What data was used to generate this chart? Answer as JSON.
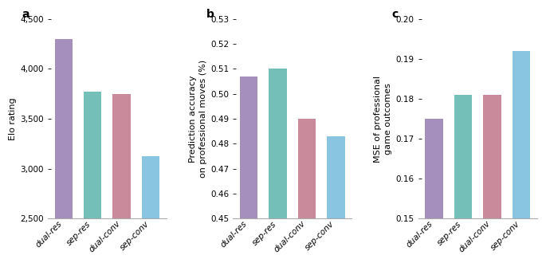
{
  "categories": [
    "dual-res",
    "sep-res",
    "dual-conv",
    "sep-conv"
  ],
  "bar_colors": [
    "#a58fbc",
    "#74bfb8",
    "#c98a9b",
    "#89c4e0"
  ],
  "chart_a": {
    "label": "a",
    "values": [
      4300,
      3775,
      3750,
      3125
    ],
    "ylabel": "Elo rating",
    "ylim": [
      2500,
      4500
    ],
    "yticks": [
      2500,
      3000,
      3500,
      4000,
      4500
    ]
  },
  "chart_b": {
    "label": "b",
    "values": [
      0.507,
      0.51,
      0.49,
      0.483
    ],
    "ylabel": "Prediction accuracy\non professional moves (%)",
    "ylim": [
      0.45,
      0.53
    ],
    "yticks": [
      0.45,
      0.46,
      0.47,
      0.48,
      0.49,
      0.5,
      0.51,
      0.52,
      0.53
    ]
  },
  "chart_c": {
    "label": "c",
    "values": [
      0.175,
      0.181,
      0.181,
      0.192
    ],
    "ylabel": "MSE of professional\ngame outcomes",
    "ylim": [
      0.15,
      0.2
    ],
    "yticks": [
      0.15,
      0.16,
      0.17,
      0.18,
      0.19,
      0.2
    ]
  },
  "background_color": "#ffffff",
  "bar_width": 0.62,
  "tick_label_fontsize": 7.5,
  "axis_label_fontsize": 8,
  "panel_label_fontsize": 10
}
